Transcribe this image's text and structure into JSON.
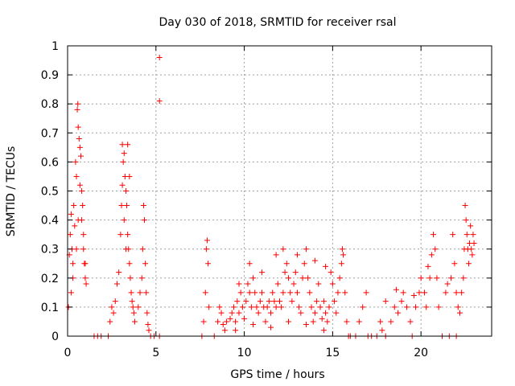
{
  "chart_data": {
    "type": "scatter",
    "title": "Day 030 of 2018, SRMTID for receiver rsal",
    "xlabel": "GPS time / hours",
    "ylabel": "SRMTID / TECUs",
    "xlim": [
      0,
      24
    ],
    "ylim": [
      0,
      1
    ],
    "xticks": [
      {
        "value": 0,
        "label": "0"
      },
      {
        "value": 5,
        "label": "5"
      },
      {
        "value": 10,
        "label": "10"
      },
      {
        "value": 15,
        "label": "15"
      },
      {
        "value": 20,
        "label": "20"
      }
    ],
    "yticks": [
      {
        "value": 0,
        "label": "0"
      },
      {
        "value": 0.1,
        "label": "0.1"
      },
      {
        "value": 0.2,
        "label": "0.2"
      },
      {
        "value": 0.3,
        "label": "0.3"
      },
      {
        "value": 0.4,
        "label": "0.4"
      },
      {
        "value": 0.5,
        "label": "0.5"
      },
      {
        "value": 0.6,
        "label": "0.6"
      },
      {
        "value": 0.7,
        "label": "0.7"
      },
      {
        "value": 0.8,
        "label": "0.8"
      },
      {
        "value": 0.9,
        "label": "0.9"
      },
      {
        "value": 1,
        "label": "1"
      }
    ],
    "grid": true,
    "marker": "+",
    "series": [
      {
        "name": "rsal",
        "color": "#ff0000",
        "points": [
          [
            0.05,
            0.1
          ],
          [
            0.1,
            0.28
          ],
          [
            0.15,
            0.35
          ],
          [
            0.2,
            0.42
          ],
          [
            0.25,
            0.3
          ],
          [
            0.3,
            0.25
          ],
          [
            0.35,
            0.45
          ],
          [
            0.4,
            0.38
          ],
          [
            0.45,
            0.6
          ],
          [
            0.5,
            0.55
          ],
          [
            0.55,
            0.78
          ],
          [
            0.58,
            0.8
          ],
          [
            0.6,
            0.72
          ],
          [
            0.65,
            0.68
          ],
          [
            0.7,
            0.65
          ],
          [
            0.75,
            0.62
          ],
          [
            0.8,
            0.5
          ],
          [
            0.85,
            0.45
          ],
          [
            0.9,
            0.35
          ],
          [
            0.95,
            0.25
          ],
          [
            1.0,
            0.2
          ],
          [
            1.05,
            0.18
          ],
          [
            0.2,
            0.15
          ],
          [
            0.3,
            0.2
          ],
          [
            0.5,
            0.3
          ],
          [
            0.6,
            0.4
          ],
          [
            0.7,
            0.52
          ],
          [
            0.8,
            0.4
          ],
          [
            0.9,
            0.3
          ],
          [
            1.0,
            0.25
          ],
          [
            1.5,
            0.0
          ],
          [
            1.7,
            0.0
          ],
          [
            1.9,
            0.0
          ],
          [
            2.3,
            0.0
          ],
          [
            2.4,
            0.05
          ],
          [
            2.5,
            0.1
          ],
          [
            2.6,
            0.08
          ],
          [
            2.7,
            0.12
          ],
          [
            2.8,
            0.18
          ],
          [
            2.9,
            0.22
          ],
          [
            3.0,
            0.35
          ],
          [
            3.05,
            0.45
          ],
          [
            3.1,
            0.52
          ],
          [
            3.15,
            0.6
          ],
          [
            3.2,
            0.63
          ],
          [
            3.25,
            0.55
          ],
          [
            3.3,
            0.5
          ],
          [
            3.35,
            0.45
          ],
          [
            3.4,
            0.35
          ],
          [
            3.45,
            0.3
          ],
          [
            3.5,
            0.25
          ],
          [
            3.55,
            0.2
          ],
          [
            3.6,
            0.15
          ],
          [
            3.65,
            0.12
          ],
          [
            3.7,
            0.1
          ],
          [
            3.75,
            0.08
          ],
          [
            3.8,
            0.05
          ],
          [
            3.1,
            0.66
          ],
          [
            3.4,
            0.66
          ],
          [
            3.5,
            0.55
          ],
          [
            3.2,
            0.4
          ],
          [
            3.3,
            0.3
          ],
          [
            4.0,
            0.1
          ],
          [
            4.1,
            0.15
          ],
          [
            4.2,
            0.2
          ],
          [
            4.25,
            0.3
          ],
          [
            4.3,
            0.45
          ],
          [
            4.35,
            0.4
          ],
          [
            4.4,
            0.25
          ],
          [
            4.45,
            0.15
          ],
          [
            4.5,
            0.08
          ],
          [
            4.55,
            0.04
          ],
          [
            4.6,
            0.02
          ],
          [
            4.7,
            0.0
          ],
          [
            4.9,
            0.0
          ],
          [
            5.2,
            0.96
          ],
          [
            5.2,
            0.81
          ],
          [
            5.2,
            0.0
          ],
          [
            7.6,
            0.0
          ],
          [
            7.7,
            0.05
          ],
          [
            7.8,
            0.15
          ],
          [
            7.85,
            0.3
          ],
          [
            7.9,
            0.33
          ],
          [
            7.95,
            0.25
          ],
          [
            8.0,
            0.1
          ],
          [
            8.3,
            0.0
          ],
          [
            8.5,
            0.05
          ],
          [
            8.6,
            0.1
          ],
          [
            8.7,
            0.08
          ],
          [
            8.8,
            0.04
          ],
          [
            8.9,
            0.02
          ],
          [
            9.0,
            0.05
          ],
          [
            9.2,
            0.06
          ],
          [
            9.3,
            0.08
          ],
          [
            9.4,
            0.1
          ],
          [
            9.5,
            0.05
          ],
          [
            9.6,
            0.12
          ],
          [
            9.7,
            0.08
          ],
          [
            9.8,
            0.15
          ],
          [
            9.9,
            0.1
          ],
          [
            10.0,
            0.06
          ],
          [
            10.1,
            0.12
          ],
          [
            10.2,
            0.18
          ],
          [
            10.3,
            0.15
          ],
          [
            10.4,
            0.1
          ],
          [
            10.5,
            0.2
          ],
          [
            10.6,
            0.15
          ],
          [
            10.7,
            0.1
          ],
          [
            10.8,
            0.08
          ],
          [
            10.9,
            0.12
          ],
          [
            11.0,
            0.15
          ],
          [
            11.1,
            0.1
          ],
          [
            11.2,
            0.05
          ],
          [
            11.3,
            0.1
          ],
          [
            11.4,
            0.12
          ],
          [
            11.5,
            0.08
          ],
          [
            11.6,
            0.15
          ],
          [
            11.7,
            0.12
          ],
          [
            11.8,
            0.1
          ],
          [
            11.9,
            0.18
          ],
          [
            12.0,
            0.12
          ],
          [
            12.1,
            0.1
          ],
          [
            12.2,
            0.15
          ],
          [
            12.3,
            0.22
          ],
          [
            12.4,
            0.25
          ],
          [
            12.5,
            0.2
          ],
          [
            12.6,
            0.15
          ],
          [
            12.7,
            0.12
          ],
          [
            12.8,
            0.18
          ],
          [
            12.9,
            0.22
          ],
          [
            13.0,
            0.15
          ],
          [
            13.1,
            0.1
          ],
          [
            13.2,
            0.08
          ],
          [
            13.3,
            0.2
          ],
          [
            13.4,
            0.25
          ],
          [
            13.5,
            0.3
          ],
          [
            13.6,
            0.2
          ],
          [
            13.7,
            0.15
          ],
          [
            13.8,
            0.1
          ],
          [
            13.9,
            0.05
          ],
          [
            14.0,
            0.08
          ],
          [
            14.1,
            0.12
          ],
          [
            14.2,
            0.18
          ],
          [
            14.3,
            0.1
          ],
          [
            14.4,
            0.06
          ],
          [
            14.5,
            0.12
          ],
          [
            14.6,
            0.08
          ],
          [
            14.7,
            0.05
          ],
          [
            14.8,
            0.1
          ],
          [
            14.9,
            0.22
          ],
          [
            15.0,
            0.18
          ],
          [
            15.1,
            0.12
          ],
          [
            15.2,
            0.08
          ],
          [
            15.3,
            0.15
          ],
          [
            15.4,
            0.2
          ],
          [
            15.5,
            0.25
          ],
          [
            15.55,
            0.3
          ],
          [
            15.6,
            0.28
          ],
          [
            15.7,
            0.15
          ],
          [
            15.8,
            0.05
          ],
          [
            15.9,
            0.0
          ],
          [
            9.5,
            0.02
          ],
          [
            10.5,
            0.04
          ],
          [
            11.5,
            0.03
          ],
          [
            12.5,
            0.05
          ],
          [
            13.5,
            0.04
          ],
          [
            14.5,
            0.02
          ],
          [
            9.7,
            0.18
          ],
          [
            10.3,
            0.25
          ],
          [
            11.0,
            0.22
          ],
          [
            11.8,
            0.28
          ],
          [
            12.2,
            0.3
          ],
          [
            13.0,
            0.28
          ],
          [
            14.0,
            0.26
          ],
          [
            14.6,
            0.24
          ],
          [
            16.0,
            0.0
          ],
          [
            16.3,
            0.0
          ],
          [
            16.5,
            0.05
          ],
          [
            16.7,
            0.1
          ],
          [
            16.9,
            0.15
          ],
          [
            17.0,
            0.0
          ],
          [
            17.2,
            0.0
          ],
          [
            17.5,
            0.0
          ],
          [
            17.7,
            0.05
          ],
          [
            17.8,
            0.02
          ],
          [
            18.0,
            0.0
          ],
          [
            18.3,
            0.05
          ],
          [
            18.5,
            0.1
          ],
          [
            18.7,
            0.08
          ],
          [
            18.9,
            0.12
          ],
          [
            19.0,
            0.15
          ],
          [
            19.2,
            0.1
          ],
          [
            19.4,
            0.05
          ],
          [
            19.5,
            0.0
          ],
          [
            19.7,
            0.1
          ],
          [
            19.9,
            0.15
          ],
          [
            20.0,
            0.2
          ],
          [
            20.2,
            0.15
          ],
          [
            20.3,
            0.1
          ],
          [
            20.5,
            0.2
          ],
          [
            20.6,
            0.28
          ],
          [
            20.7,
            0.35
          ],
          [
            20.8,
            0.3
          ],
          [
            20.9,
            0.2
          ],
          [
            21.0,
            0.1
          ],
          [
            18.0,
            0.12
          ],
          [
            18.6,
            0.16
          ],
          [
            19.6,
            0.14
          ],
          [
            20.4,
            0.24
          ],
          [
            21.4,
            0.15
          ],
          [
            21.5,
            0.18
          ],
          [
            21.7,
            0.2
          ],
          [
            21.8,
            0.35
          ],
          [
            21.9,
            0.25
          ],
          [
            22.0,
            0.15
          ],
          [
            22.1,
            0.1
          ],
          [
            22.2,
            0.08
          ],
          [
            21.2,
            0.0
          ],
          [
            21.6,
            0.0
          ],
          [
            22.0,
            0.0
          ],
          [
            22.3,
            0.15
          ],
          [
            22.4,
            0.2
          ],
          [
            22.45,
            0.3
          ],
          [
            22.5,
            0.45
          ],
          [
            22.55,
            0.4
          ],
          [
            22.6,
            0.35
          ],
          [
            22.65,
            0.3
          ],
          [
            22.7,
            0.25
          ],
          [
            22.75,
            0.32
          ],
          [
            22.8,
            0.38
          ],
          [
            22.85,
            0.3
          ],
          [
            22.9,
            0.28
          ],
          [
            22.95,
            0.35
          ],
          [
            23.0,
            0.32
          ]
        ]
      }
    ]
  }
}
